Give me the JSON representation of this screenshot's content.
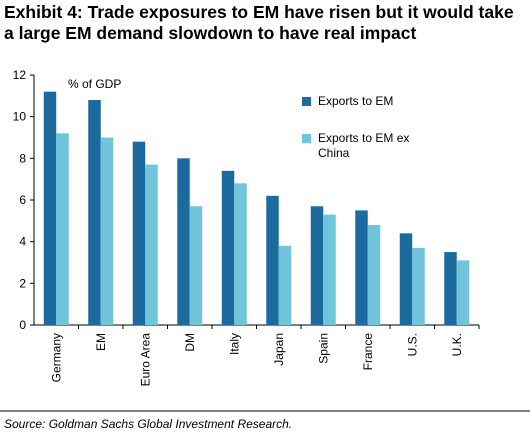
{
  "chart_data": {
    "type": "bar",
    "title": "Exhibit 4: Trade exposures to EM have risen but it would take a large EM demand slowdown to have real impact",
    "annotation": "% of GDP",
    "source": "Source: Goldman Sachs Global Investment Research.",
    "categories": [
      "Germany",
      "EM",
      "Euro Area",
      "DM",
      "Italy",
      "Japan",
      "Spain",
      "France",
      "U.S.",
      "U.K."
    ],
    "series": [
      {
        "name": "Exports to EM",
        "color": "#1c6b9f",
        "values": [
          11.2,
          10.8,
          8.8,
          8.0,
          7.4,
          6.2,
          5.7,
          5.5,
          4.4,
          3.5
        ]
      },
      {
        "name": "Exports to EM ex China",
        "color": "#70c4dc",
        "values": [
          9.2,
          9.0,
          7.7,
          5.7,
          6.8,
          3.8,
          5.3,
          4.8,
          3.7,
          3.1
        ]
      }
    ],
    "ylim": [
      0,
      12
    ],
    "yticks": [
      0,
      2,
      4,
      6,
      8,
      10,
      12
    ],
    "grid": false
  }
}
